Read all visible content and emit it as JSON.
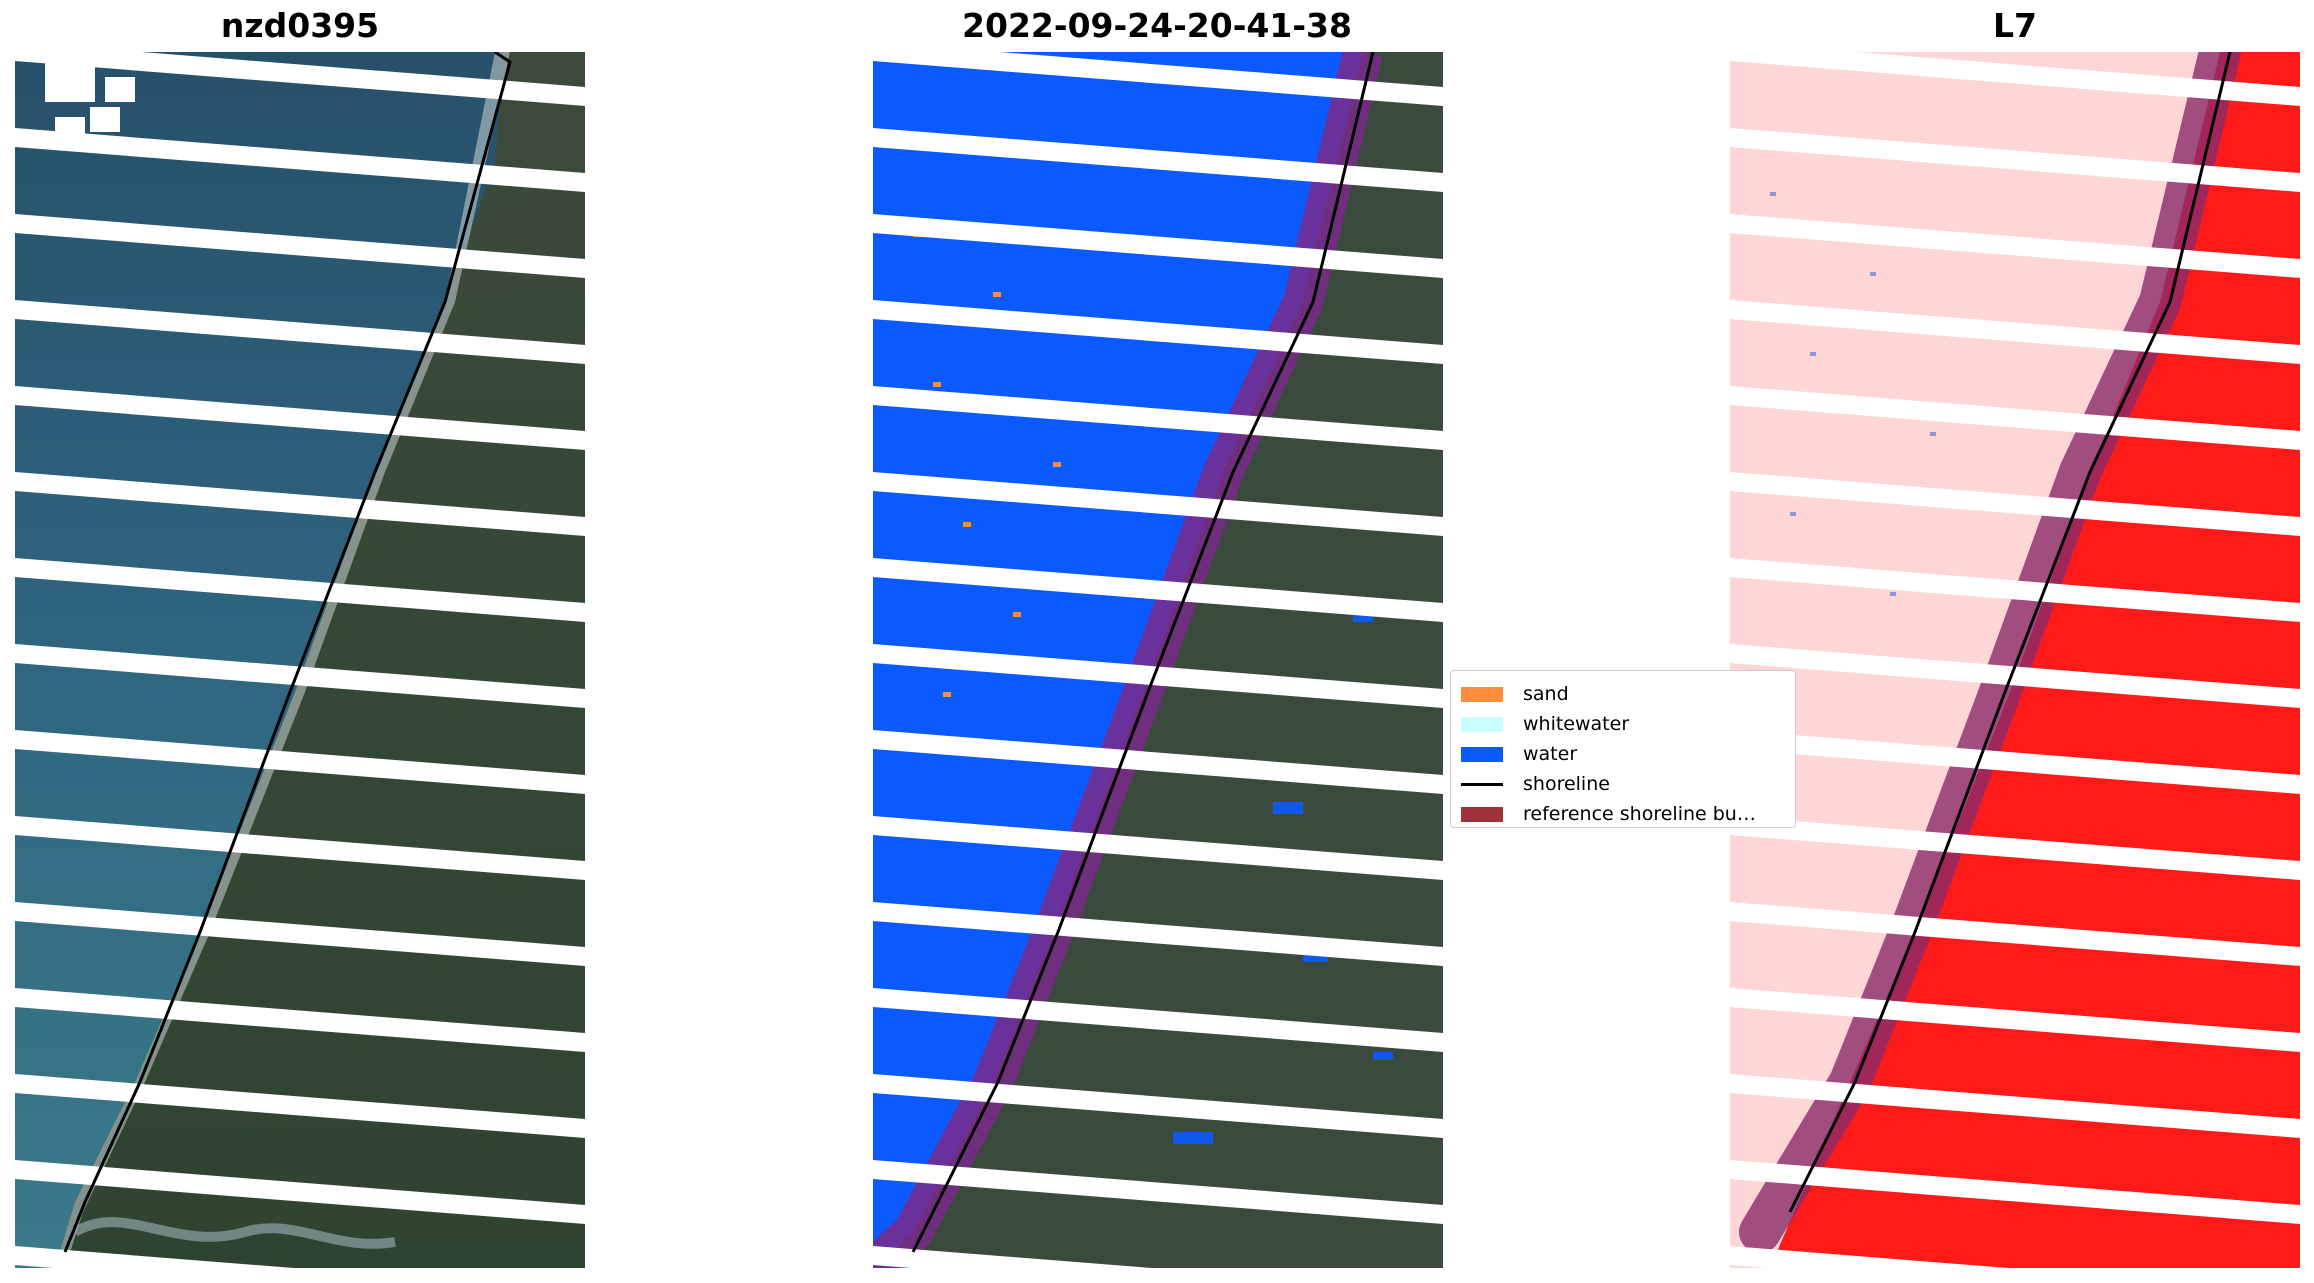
{
  "panels": [
    {
      "title": "nzd0395"
    },
    {
      "title": "2022-09-24-20-41-38"
    },
    {
      "title": "L7"
    }
  ],
  "legend": {
    "items": [
      {
        "label": "sand",
        "kind": "patch",
        "color": "#ff8c3c"
      },
      {
        "label": "whitewater",
        "kind": "patch",
        "color": "#c8ffff"
      },
      {
        "label": "water",
        "kind": "patch",
        "color": "#0a5aff"
      },
      {
        "label": "shoreline",
        "kind": "line",
        "color": "#000000"
      },
      {
        "label": "reference shoreline bu…",
        "kind": "patch",
        "color": "#a0323c"
      }
    ]
  },
  "colors": {
    "ocean": "#2e5a73",
    "land": "#3a4a35",
    "classified_water": "#0a5aff",
    "index_land": "#ff1a1a",
    "index_water": "#ffd6d6",
    "reference_buffer": "#7a2a8a",
    "scan_gap": "#ffffff"
  }
}
